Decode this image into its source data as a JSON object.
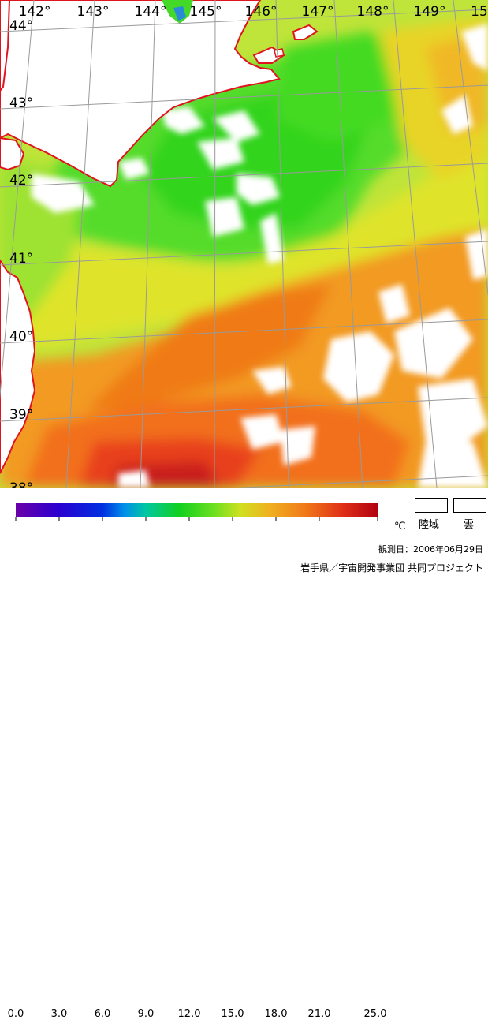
{
  "map": {
    "lon_labels": [
      "142°",
      "143°",
      "144°",
      "145°",
      "146°",
      "147°",
      "148°",
      "149°",
      "15"
    ],
    "lat_labels": [
      "44°",
      "43°",
      "42°",
      "41°",
      "40°",
      "39°",
      "38°"
    ],
    "colors": {
      "land": "#ffffff",
      "cloud": "#ffffff",
      "coastline": "#e0141e",
      "grid": "#9a9a9a"
    }
  },
  "scale": {
    "ticks": [
      "0.0",
      "3.0",
      "6.0",
      "9.0",
      "12.0",
      "15.0",
      "18.0",
      "21.0",
      "25.0"
    ],
    "unit": "℃",
    "land_label": "陸域",
    "cloud_label": "雲"
  },
  "footer": {
    "observation": "観測日：2006年06月29日",
    "credit": "岩手県／宇宙開発事業団 共同プロジェクト"
  }
}
